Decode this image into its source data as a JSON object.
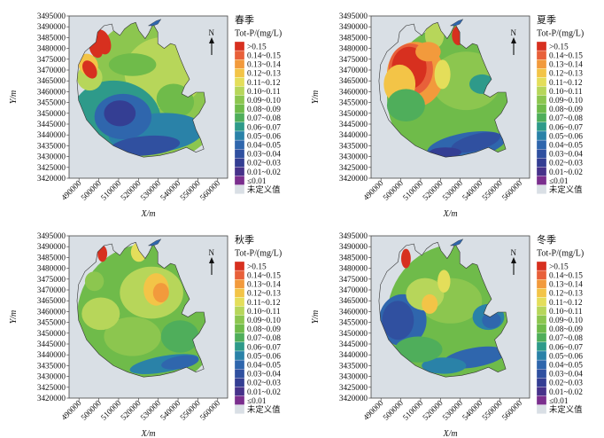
{
  "figure": {
    "xlabel": "X/m",
    "ylabel": "Y/m",
    "north": "N",
    "legend_title": "Tot-P/(mg/L)",
    "x_ticks": [
      "490000",
      "500000",
      "510000",
      "520000",
      "530000",
      "540000",
      "550000",
      "560000"
    ],
    "y_ticks": [
      "3495000",
      "3490000",
      "3485000",
      "3480000",
      "3475000",
      "3470000",
      "3465000",
      "3460000",
      "3455000",
      "3450000",
      "3445000",
      "3440000",
      "3435000",
      "3430000",
      "3425000",
      "3420000"
    ],
    "legend": [
      {
        "label": ">0.15",
        "color": "#d7301f"
      },
      {
        "label": "0.14~0.15",
        "color": "#e8603a"
      },
      {
        "label": "0.13~0.14",
        "color": "#f29a3c"
      },
      {
        "label": "0.12~0.13",
        "color": "#f3c447"
      },
      {
        "label": "0.11~0.12",
        "color": "#e4de5a"
      },
      {
        "label": "0.10~0.11",
        "color": "#b7d65a"
      },
      {
        "label": "0.09~0.10",
        "color": "#8cc64f"
      },
      {
        "label": "0.08~0.09",
        "color": "#6fbb4a"
      },
      {
        "label": "0.07~0.08",
        "color": "#4fae5b"
      },
      {
        "label": "0.06~0.07",
        "color": "#2e9a8a"
      },
      {
        "label": "0.05~0.06",
        "color": "#2a82a8"
      },
      {
        "label": "0.04~0.05",
        "color": "#2f66ad"
      },
      {
        "label": "0.03~0.04",
        "color": "#3050a0"
      },
      {
        "label": "0.02~0.03",
        "color": "#343e93"
      },
      {
        "label": "0.01~0.02",
        "color": "#47328a"
      },
      {
        "label": "≤0.01",
        "color": "#7b2f8e"
      },
      {
        "label": "未定义值",
        "color": "#d9dfe5"
      }
    ]
  },
  "chart_data": [
    {
      "type": "heatmap",
      "title": "春季",
      "xlabel": "X/m",
      "ylabel": "Y/m",
      "xlim": [
        485000,
        565000
      ],
      "ylim": [
        3420000,
        3495000
      ]
    },
    {
      "type": "heatmap",
      "title": "夏季",
      "xlabel": "X/m",
      "ylabel": "Y/m",
      "xlim": [
        485000,
        565000
      ],
      "ylim": [
        3420000,
        3495000
      ]
    },
    {
      "type": "heatmap",
      "title": "秋季",
      "xlabel": "X/m",
      "ylabel": "Y/m",
      "xlim": [
        485000,
        565000
      ],
      "ylim": [
        3420000,
        3495000
      ]
    },
    {
      "type": "heatmap",
      "title": "冬季",
      "xlabel": "X/m",
      "ylabel": "Y/m",
      "xlim": [
        485000,
        565000
      ],
      "ylim": [
        3420000,
        3495000
      ]
    }
  ]
}
